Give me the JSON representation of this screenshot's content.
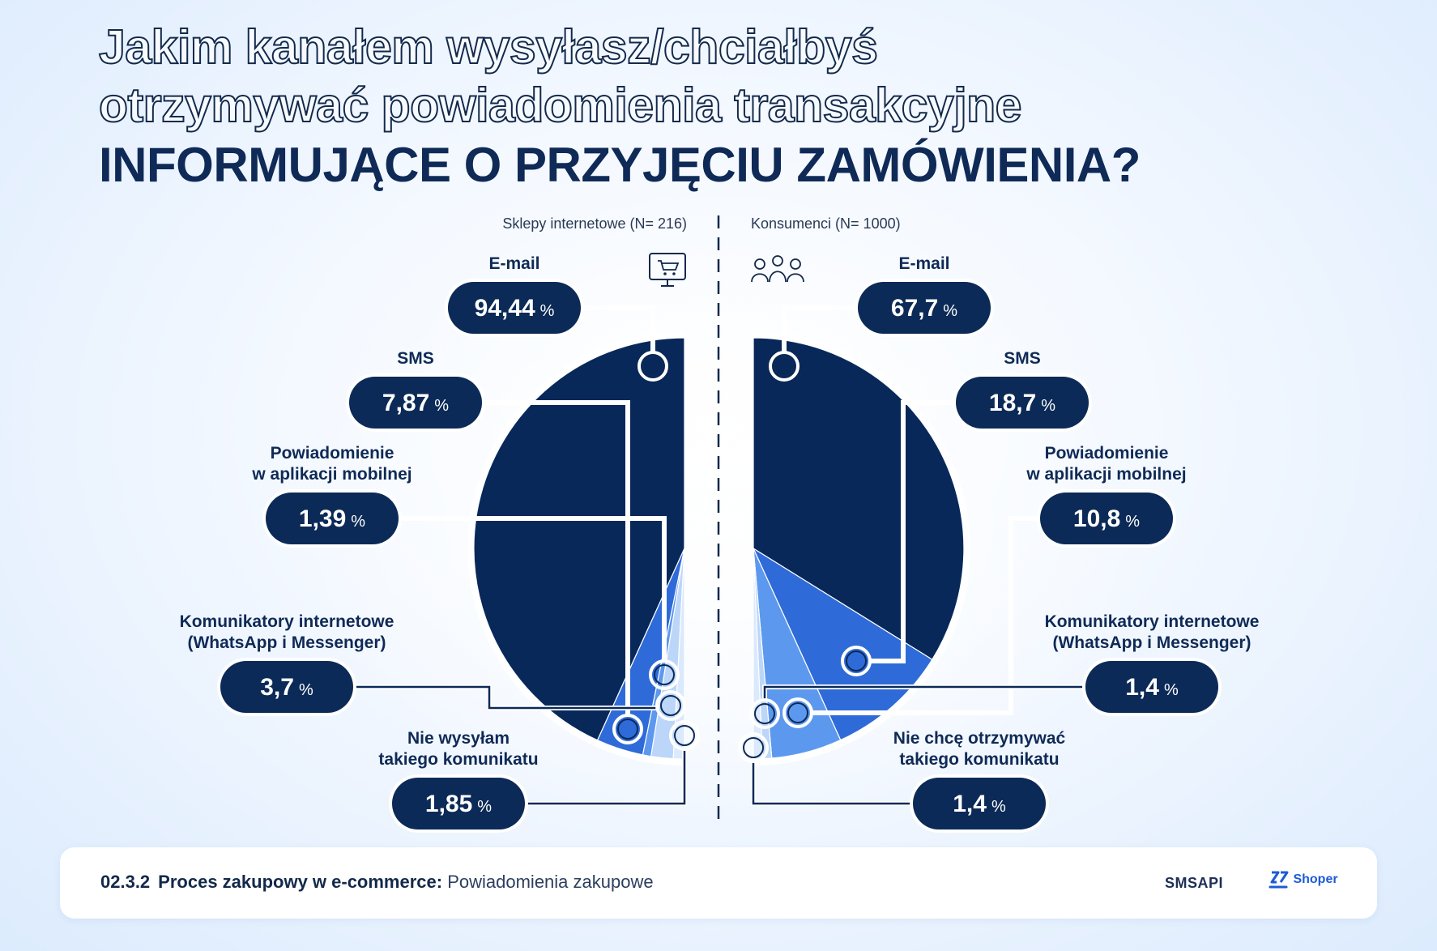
{
  "title": {
    "line1": "Jakim kanałem wysyłasz/chciałbyś",
    "line2": "otrzymywać powiadomienia transakcyjne",
    "line3": "INFORMUJĄCE O PRZYJĘCIU ZAMÓWIENIA?"
  },
  "colors": {
    "navy": "#08285a",
    "blue": "#2f6bd8",
    "light_blue": "#5d98ef",
    "pale_blue": "#bcd6fa"
  },
  "chart_data": [
    {
      "type": "pie",
      "title": "Sklepy internetowe (N= 216)",
      "icon": "shop-monitor-icon",
      "unit": "%",
      "categories": [
        "E-mail",
        "SMS",
        "Powiadomienie w aplikacji mobilnej",
        "Komunikatory internetowe (WhatsApp i Messenger)",
        "Nie wysyłam takiego komunikatu"
      ],
      "labels": [
        "E-mail",
        "SMS",
        "Powiadomienie\nw aplikacji mobilnej",
        "Komunikatory internetowe\n(WhatsApp i Messenger)",
        "Nie wysyłam\ntakiego komunikatu"
      ],
      "values": [
        94.44,
        7.87,
        1.39,
        3.7,
        1.85
      ],
      "display_values": [
        "94,44",
        "7,87",
        "1,39",
        "3,7",
        "1,85"
      ],
      "legend": "callouts-left"
    },
    {
      "type": "pie",
      "title": "Konsumenci (N= 1000)",
      "icon": "people-group-icon",
      "unit": "%",
      "categories": [
        "E-mail",
        "SMS",
        "Powiadomienie w aplikacji mobilnej",
        "Komunikatory internetowe (WhatsApp i Messenger)",
        "Nie chcę otrzymywać takiego komunikatu"
      ],
      "labels": [
        "E-mail",
        "SMS",
        "Powiadomienie\nw aplikacji mobilnej",
        "Komunikatory internetowe\n(WhatsApp i Messenger)",
        "Nie chcę otrzymywać\ntakiego komunikatu"
      ],
      "values": [
        67.7,
        18.7,
        10.8,
        1.4,
        1.4
      ],
      "display_values": [
        "67,7",
        "18,7",
        "10,8",
        "1,4",
        "1,4"
      ],
      "legend": "callouts-right"
    }
  ],
  "footer": {
    "section": "02.3.2",
    "bold": "Proces zakupowy w e-commerce:",
    "light": "Powiadomienia zakupowe",
    "logo_left": "SMSAPI",
    "logo_right": "Shoper"
  }
}
